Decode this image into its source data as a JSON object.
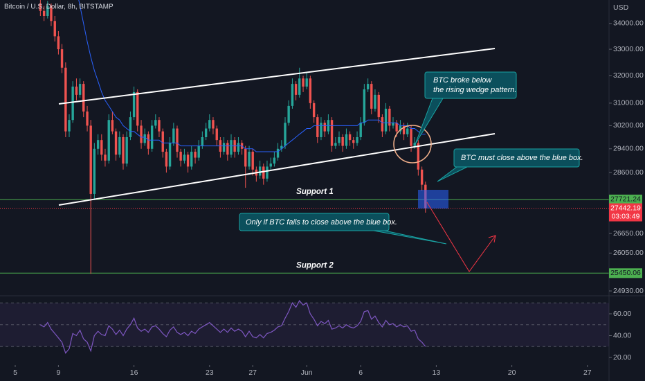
{
  "header": {
    "symbol": "Bitcoin / U.S. Dollar, 8h, BITSTAMP",
    "currency": "USD"
  },
  "chart_data": {
    "type": "candlestick",
    "x": [
      7.33,
      7.67,
      8,
      8.33,
      8.67,
      9,
      9.33,
      9.67,
      10,
      10.33,
      10.67,
      11,
      11.33,
      11.67,
      12,
      12.33,
      12.67,
      13,
      13.33,
      13.67,
      14,
      14.33,
      14.67,
      15,
      15.33,
      15.67,
      16,
      16.33,
      16.67,
      17,
      17.33,
      17.67,
      18,
      18.33,
      18.67,
      19,
      19.33,
      19.67,
      20,
      20.33,
      20.67,
      21,
      21.33,
      21.67,
      22,
      22.33,
      22.67,
      23,
      23.33,
      23.67,
      24,
      24.33,
      24.67,
      25,
      25.33,
      25.67,
      26,
      26.33,
      26.67,
      27,
      27.33,
      27.67,
      28,
      28.33,
      28.67,
      29,
      29.33,
      29.67,
      30,
      30.33,
      30.67,
      31,
      31.33,
      31.67,
      32,
      32.33,
      32.67,
      33,
      33.33,
      33.67,
      34,
      34.33,
      34.67,
      35,
      35.33,
      35.67,
      36,
      36.33,
      36.67,
      37,
      37.33,
      37.67,
      38,
      38.33,
      38.67,
      39,
      39.33,
      39.67,
      40,
      40.33,
      40.67,
      41,
      41.33,
      41.67,
      42,
      42.33,
      42.67,
      43
    ],
    "ohlc": [
      [
        34800,
        35000,
        34300,
        34500
      ],
      [
        34500,
        34700,
        34100,
        34300
      ],
      [
        34300,
        34900,
        34200,
        34700
      ],
      [
        34700,
        34800,
        33900,
        34100
      ],
      [
        34100,
        34300,
        33300,
        33500
      ],
      [
        33500,
        33700,
        32800,
        33000
      ],
      [
        33000,
        33200,
        32100,
        32300
      ],
      [
        32300,
        32500,
        29800,
        30000
      ],
      [
        30000,
        30600,
        29800,
        30400
      ],
      [
        30400,
        31800,
        30300,
        31600
      ],
      [
        31600,
        31900,
        31100,
        31300
      ],
      [
        31300,
        31900,
        31200,
        31700
      ],
      [
        31700,
        31800,
        30500,
        30700
      ],
      [
        30700,
        30900,
        30000,
        30200
      ],
      [
        30200,
        30400,
        25430,
        27900
      ],
      [
        27900,
        29600,
        27700,
        29400
      ],
      [
        29400,
        29900,
        29200,
        29700
      ],
      [
        29700,
        29900,
        29000,
        29200
      ],
      [
        29200,
        29400,
        28800,
        29000
      ],
      [
        29000,
        30600,
        28900,
        30400
      ],
      [
        30400,
        30700,
        29900,
        30000
      ],
      [
        30000,
        30100,
        29000,
        29200
      ],
      [
        29200,
        30000,
        29100,
        29800
      ],
      [
        29800,
        29900,
        28700,
        28900
      ],
      [
        28900,
        30000,
        28800,
        29800
      ],
      [
        29800,
        30700,
        29700,
        30500
      ],
      [
        30500,
        31600,
        30400,
        31400
      ],
      [
        31400,
        31500,
        30000,
        30200
      ],
      [
        30200,
        30400,
        29400,
        29600
      ],
      [
        29600,
        30100,
        29500,
        29900
      ],
      [
        29900,
        30000,
        29200,
        29400
      ],
      [
        29400,
        30400,
        29300,
        30200
      ],
      [
        30200,
        30600,
        30100,
        30400
      ],
      [
        30400,
        30500,
        29800,
        30000
      ],
      [
        30000,
        30100,
        29100,
        29300
      ],
      [
        29300,
        29400,
        28600,
        28800
      ],
      [
        28800,
        29800,
        28700,
        29600
      ],
      [
        29600,
        30300,
        29500,
        30100
      ],
      [
        30100,
        30200,
        29100,
        29300
      ],
      [
        29300,
        29400,
        28800,
        29000
      ],
      [
        29000,
        29400,
        28900,
        29200
      ],
      [
        29200,
        29300,
        28600,
        28800
      ],
      [
        28800,
        29500,
        28700,
        29300
      ],
      [
        29300,
        29400,
        28900,
        29100
      ],
      [
        29100,
        29700,
        29000,
        29500
      ],
      [
        29500,
        30000,
        29400,
        29800
      ],
      [
        29800,
        30300,
        29700,
        30100
      ],
      [
        30100,
        30600,
        30000,
        30400
      ],
      [
        30400,
        30500,
        29900,
        30100
      ],
      [
        30100,
        30200,
        29500,
        29700
      ],
      [
        29700,
        29800,
        29100,
        29300
      ],
      [
        29300,
        29800,
        29200,
        29600
      ],
      [
        29600,
        29700,
        29000,
        29200
      ],
      [
        29200,
        29900,
        29100,
        29700
      ],
      [
        29700,
        29800,
        29100,
        29300
      ],
      [
        29300,
        29800,
        29200,
        29600
      ],
      [
        29600,
        29700,
        29200,
        29400
      ],
      [
        29400,
        29500,
        28100,
        28800
      ],
      [
        28800,
        29500,
        28700,
        29300
      ],
      [
        29300,
        29400,
        28500,
        28700
      ],
      [
        28700,
        28800,
        28300,
        28500
      ],
      [
        28500,
        29000,
        28400,
        28800
      ],
      [
        28800,
        28900,
        28200,
        28400
      ],
      [
        28400,
        29000,
        28300,
        28800
      ],
      [
        28800,
        29100,
        28700,
        28900
      ],
      [
        28900,
        29300,
        28800,
        29100
      ],
      [
        29100,
        29600,
        29000,
        29400
      ],
      [
        29400,
        29700,
        29300,
        29500
      ],
      [
        29500,
        30500,
        29400,
        30300
      ],
      [
        30300,
        31100,
        30200,
        30900
      ],
      [
        30900,
        31900,
        30800,
        31700
      ],
      [
        31700,
        31800,
        31100,
        31300
      ],
      [
        31300,
        32300,
        31200,
        31900
      ],
      [
        31900,
        32000,
        31400,
        31600
      ],
      [
        31600,
        32100,
        31500,
        31900
      ],
      [
        31900,
        32000,
        30800,
        31000
      ],
      [
        31000,
        31100,
        30300,
        30500
      ],
      [
        30500,
        30600,
        29600,
        29800
      ],
      [
        29800,
        30500,
        29700,
        30300
      ],
      [
        30300,
        30400,
        29800,
        30000
      ],
      [
        30000,
        30600,
        29900,
        30400
      ],
      [
        30400,
        30500,
        29300,
        29500
      ],
      [
        29500,
        29800,
        29400,
        29600
      ],
      [
        29600,
        30000,
        29500,
        29800
      ],
      [
        29800,
        29900,
        29300,
        29500
      ],
      [
        29500,
        30100,
        29400,
        29900
      ],
      [
        29900,
        30000,
        29500,
        29700
      ],
      [
        29700,
        29800,
        29400,
        29600
      ],
      [
        29600,
        30000,
        29500,
        29800
      ],
      [
        29800,
        30500,
        29700,
        30300
      ],
      [
        30300,
        31700,
        30200,
        31500
      ],
      [
        31500,
        31900,
        31400,
        31700
      ],
      [
        31700,
        31800,
        30600,
        30800
      ],
      [
        30800,
        31500,
        30700,
        31300
      ],
      [
        31300,
        31400,
        30300,
        30500
      ],
      [
        30500,
        30600,
        29800,
        30000
      ],
      [
        30000,
        31000,
        29900,
        30800
      ],
      [
        30800,
        30900,
        30000,
        30200
      ],
      [
        30200,
        30500,
        30100,
        30300
      ],
      [
        30300,
        30400,
        29800,
        30000
      ],
      [
        30000,
        30400,
        29900,
        30200
      ],
      [
        30200,
        30300,
        29700,
        29900
      ],
      [
        29900,
        30300,
        29800,
        30100
      ],
      [
        30100,
        30200,
        29300,
        29500
      ],
      [
        29500,
        29800,
        29400,
        29600
      ],
      [
        29600,
        29700,
        28500,
        28700
      ],
      [
        28700,
        28800,
        28000,
        28200
      ],
      [
        28200,
        28300,
        27300,
        27442.19
      ]
    ],
    "up_color": "#26a69a",
    "down_color": "#ef5350",
    "ma": {
      "color": "#2962ff",
      "values": [
        null,
        null,
        null,
        null,
        null,
        null,
        null,
        null,
        null,
        null,
        35400,
        34700,
        34000,
        33300,
        32700,
        32200,
        31800,
        31400,
        31100,
        30900,
        30700,
        30500,
        30400,
        30200,
        30100,
        30000,
        30000,
        29900,
        29800,
        29800,
        29700,
        29700,
        29700,
        29700,
        29600,
        29600,
        29600,
        29600,
        29600,
        29500,
        29500,
        29500,
        29500,
        29500,
        29500,
        29500,
        29500,
        29500,
        29500,
        29500,
        29500,
        29500,
        29500,
        29500,
        29500,
        29500,
        29500,
        29400,
        29400,
        29400,
        29300,
        29300,
        29300,
        29300,
        29300,
        29300,
        29300,
        29400,
        29500,
        29600,
        29700,
        29800,
        29900,
        30000,
        30100,
        30100,
        30200,
        30200,
        30200,
        30200,
        30200,
        30200,
        30200,
        30200,
        30200,
        30200,
        30200,
        30200,
        30200,
        30300,
        30300,
        30400,
        30400,
        30400,
        30400,
        30300,
        30300,
        30300,
        30300,
        30300,
        30200,
        30200,
        30200,
        30100,
        30100,
        30000,
        29900,
        29900
      ]
    },
    "xlim": [
      3.59,
      60
    ],
    "xticks": [
      5,
      9,
      16,
      23,
      27,
      {
        "value": 32,
        "label": "Jun"
      },
      {
        "value": 37,
        "label": "6"
      },
      {
        "value": 44,
        "label": "13"
      },
      {
        "value": 51,
        "label": "20"
      },
      {
        "value": 58,
        "label": "27"
      }
    ],
    "ylim": [
      24830,
      34940
    ],
    "log": true,
    "yticks": [
      {
        "value": 34000,
        "label": "34000.00"
      },
      {
        "value": 33000,
        "label": "33000.00"
      },
      {
        "value": 32000,
        "label": "32000.00"
      },
      {
        "value": 31000,
        "label": "31000.00"
      },
      {
        "value": 30200,
        "label": "30200.00"
      },
      {
        "value": 29400,
        "label": "29400.00"
      },
      {
        "value": 28600,
        "label": "28600.00"
      },
      {
        "value": 26650,
        "label": "26650.00"
      },
      {
        "value": 26050,
        "label": "26050.00"
      },
      {
        "value": 24930,
        "label": "24930.00"
      }
    ],
    "levels": [
      {
        "name": "Support 1",
        "value": 27721.24,
        "label": "27721.24",
        "color": "#4caf50"
      },
      {
        "name": "Support 2",
        "value": 25450.06,
        "label": "25450.06",
        "color": "#4caf50"
      }
    ],
    "last_price": {
      "value": 27442.19,
      "label": "27442.19",
      "countdown": "03:03:49",
      "color": "#f23645"
    },
    "rsi": {
      "color": "#7e57c2",
      "ylim": [
        14.3,
        74.6
      ],
      "bands": [
        30,
        50,
        70
      ],
      "yticks": [
        {
          "value": 60,
          "label": "60.00"
        },
        {
          "value": 40,
          "label": "40.00"
        },
        {
          "value": 20,
          "label": "20.00"
        }
      ],
      "values": [
        50,
        48,
        52,
        46,
        42,
        38,
        34,
        24,
        28,
        42,
        40,
        45,
        37,
        34,
        26,
        40,
        44,
        41,
        40,
        49,
        46,
        41,
        45,
        40,
        46,
        50,
        56,
        47,
        44,
        46,
        43,
        48,
        49,
        46,
        42,
        39,
        45,
        48,
        43,
        41,
        43,
        40,
        44,
        42,
        46,
        48,
        50,
        52,
        49,
        46,
        43,
        46,
        43,
        47,
        44,
        46,
        44,
        39,
        44,
        39,
        38,
        41,
        38,
        42,
        43,
        45,
        48,
        49,
        56,
        62,
        70,
        66,
        72,
        68,
        70,
        60,
        55,
        49,
        53,
        51,
        54,
        46,
        47,
        49,
        47,
        50,
        48,
        47,
        49,
        53,
        62,
        63,
        55,
        58,
        52,
        48,
        54,
        50,
        51,
        48,
        50,
        48,
        49,
        44,
        45,
        37,
        34,
        30
      ]
    },
    "annotations": [
      "BTC broke below",
      "the rising wedge pattern.",
      "BTC must close above the blue box.",
      "Only if BTC fails to close above the blue box."
    ]
  }
}
